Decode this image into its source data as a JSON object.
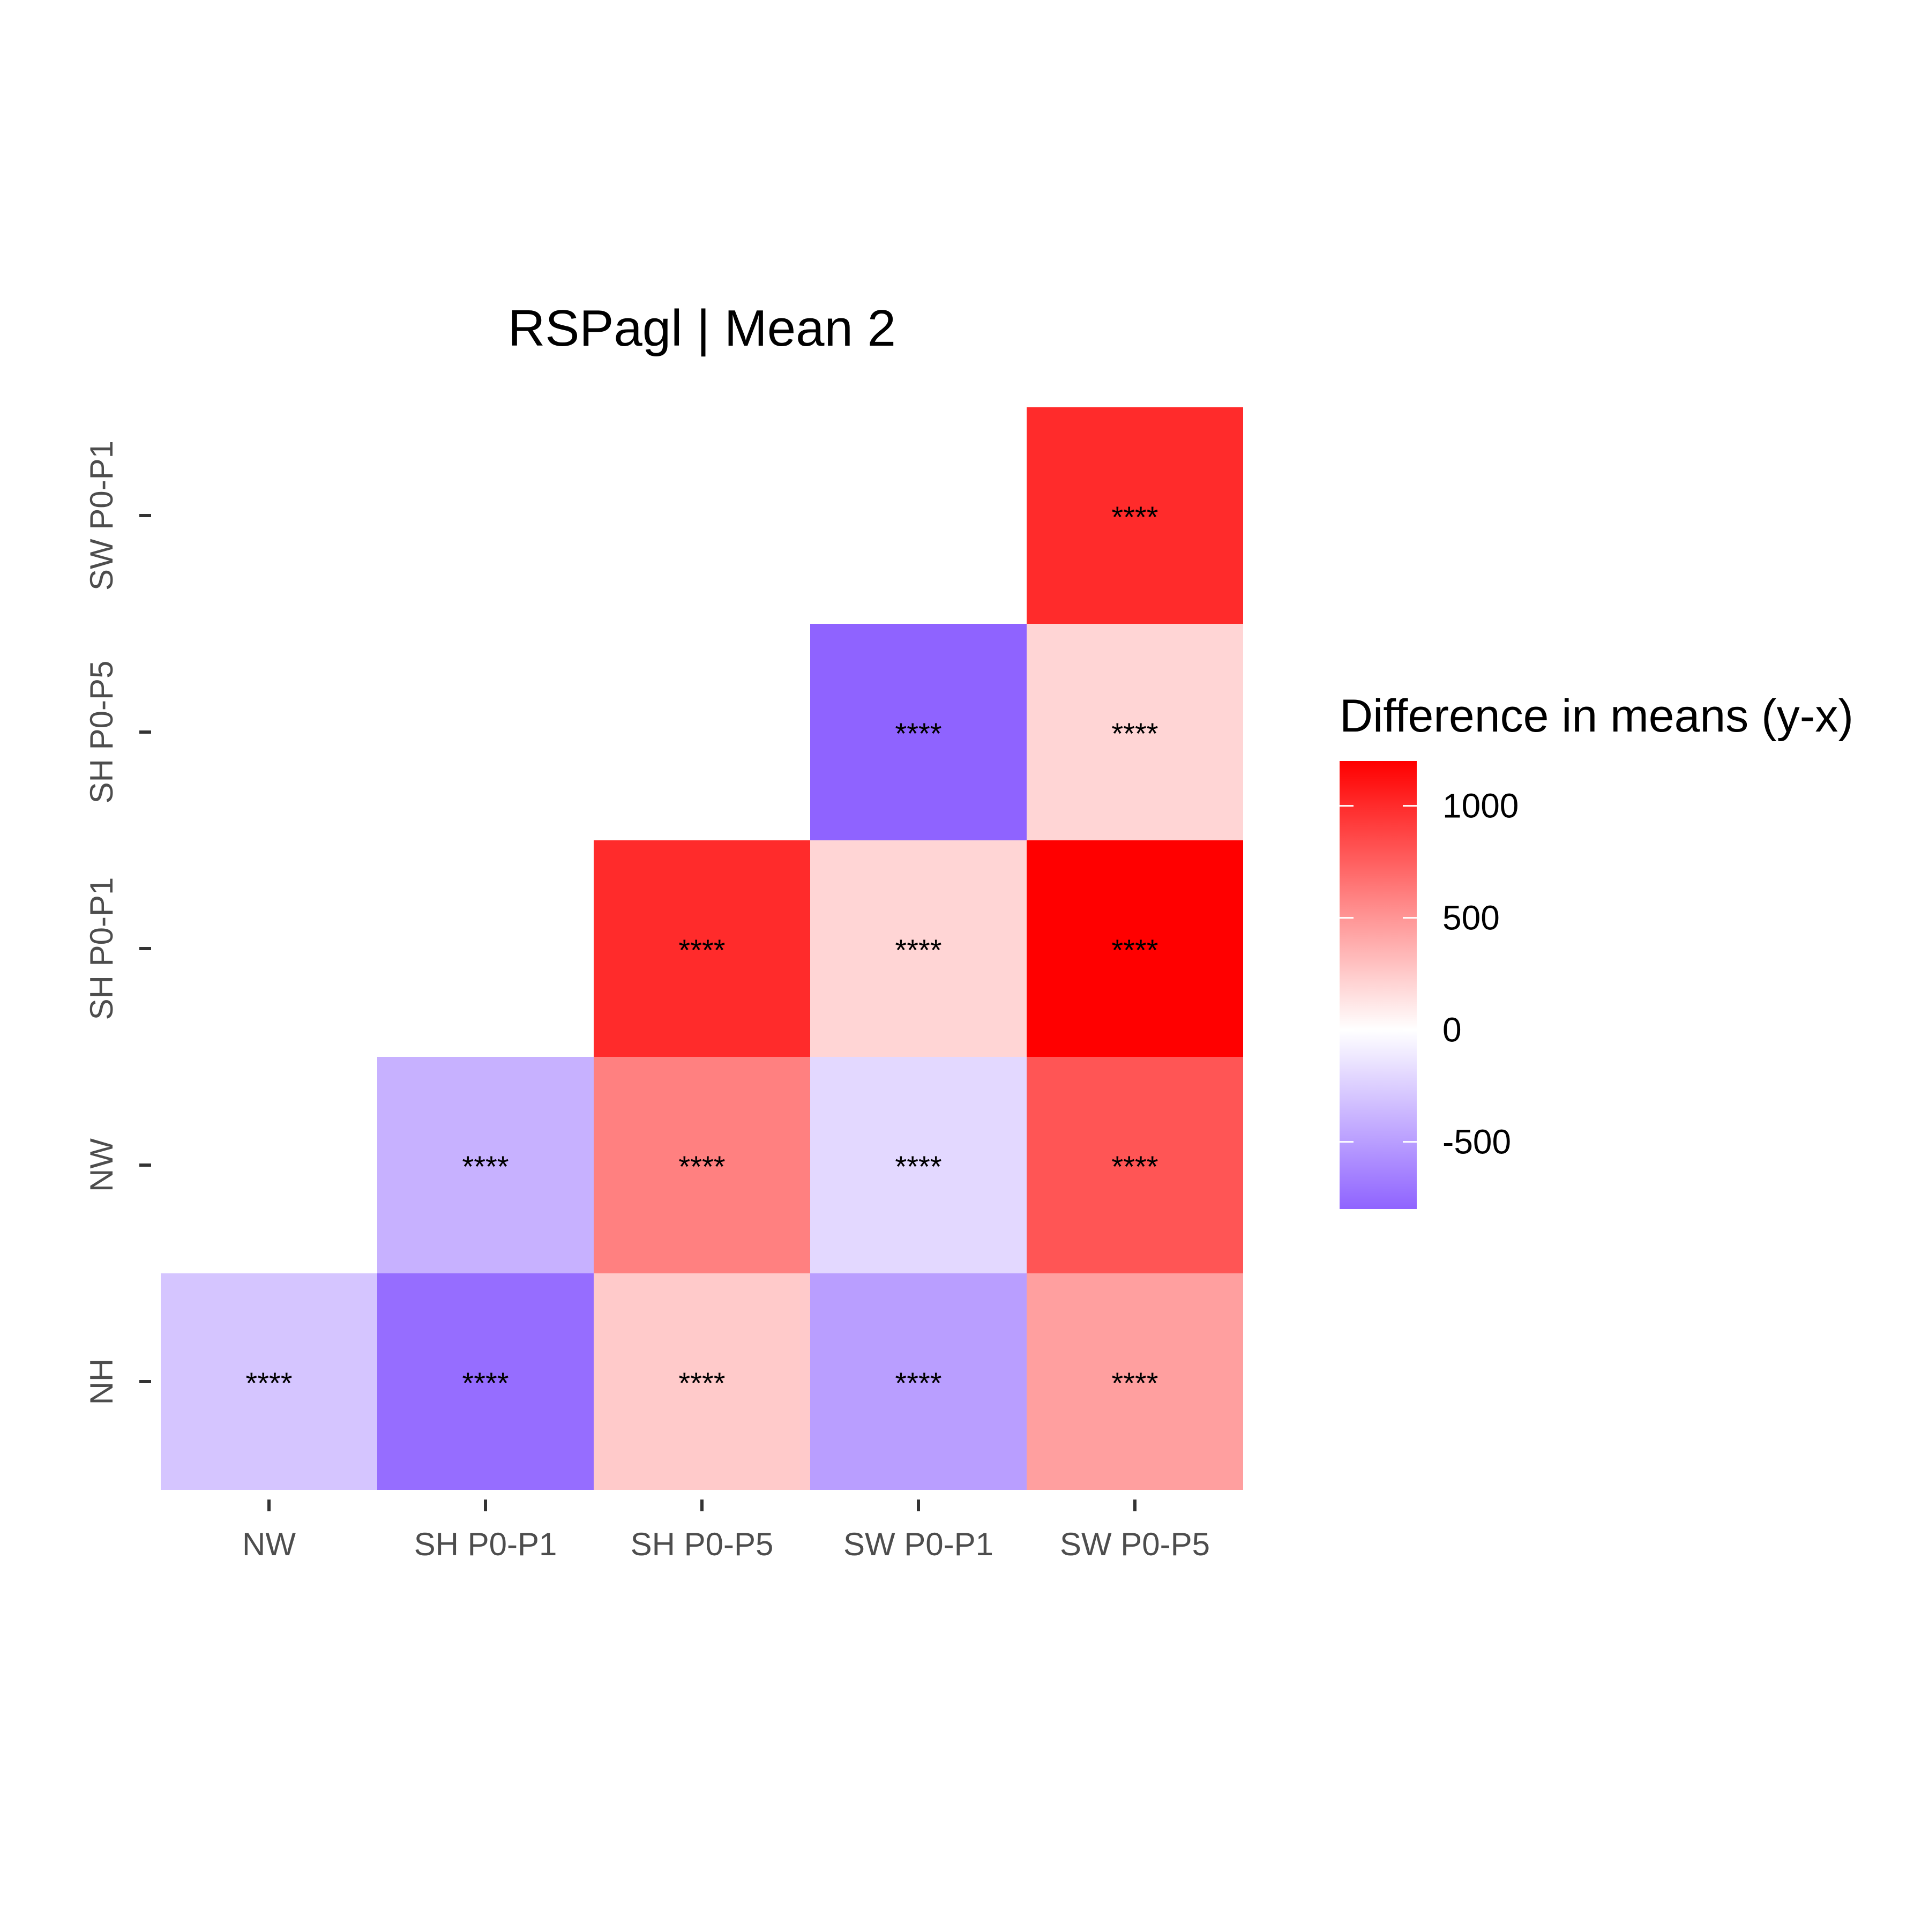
{
  "chart_data": {
    "type": "heatmap",
    "title": "RSPagl | Mean 2",
    "x_categories": [
      "NW",
      "SH P0-P1",
      "SH P0-P5",
      "SW P0-P1",
      "SW P0-P5"
    ],
    "y_categories": [
      "NH",
      "NW",
      "SH P0-P1",
      "SH P0-P5",
      "SW P0-P1"
    ],
    "cells": [
      {
        "x": "NW",
        "y": "NH",
        "value": -300,
        "label": "****"
      },
      {
        "x": "SH P0-P1",
        "y": "NH",
        "value": -750,
        "label": "****"
      },
      {
        "x": "SH P0-P5",
        "y": "NH",
        "value": 250,
        "label": "****"
      },
      {
        "x": "SW P0-P1",
        "y": "NH",
        "value": -500,
        "label": "****"
      },
      {
        "x": "SW P0-P5",
        "y": "NH",
        "value": 450,
        "label": "****"
      },
      {
        "x": "SH P0-P1",
        "y": "NW",
        "value": -400,
        "label": "****"
      },
      {
        "x": "SH P0-P5",
        "y": "NW",
        "value": 600,
        "label": "****"
      },
      {
        "x": "SW P0-P1",
        "y": "NW",
        "value": -200,
        "label": "****"
      },
      {
        "x": "SW P0-P5",
        "y": "NW",
        "value": 800,
        "label": "****"
      },
      {
        "x": "SH P0-P5",
        "y": "SH P0-P1",
        "value": 1000,
        "label": "****"
      },
      {
        "x": "SW P0-P1",
        "y": "SH P0-P1",
        "value": 200,
        "label": "****"
      },
      {
        "x": "SW P0-P5",
        "y": "SH P0-P1",
        "value": 1200,
        "label": "****"
      },
      {
        "x": "SW P0-P1",
        "y": "SH P0-P5",
        "value": -800,
        "label": "****"
      },
      {
        "x": "SW P0-P5",
        "y": "SH P0-P5",
        "value": 200,
        "label": "****"
      },
      {
        "x": "SW P0-P5",
        "y": "SW P0-P1",
        "value": 1000,
        "label": "****"
      }
    ],
    "legend": {
      "title": "Difference in means (y-x)",
      "ticks": [
        1000,
        500,
        0,
        -500
      ],
      "tick_labels": [
        "1000",
        "500",
        "0",
        "-500"
      ],
      "range": [
        -800,
        1200
      ],
      "low_color": "#8f63ff",
      "mid_color": "#ffffff",
      "high_color": "#ff0000",
      "position": "right"
    },
    "grid": false
  }
}
